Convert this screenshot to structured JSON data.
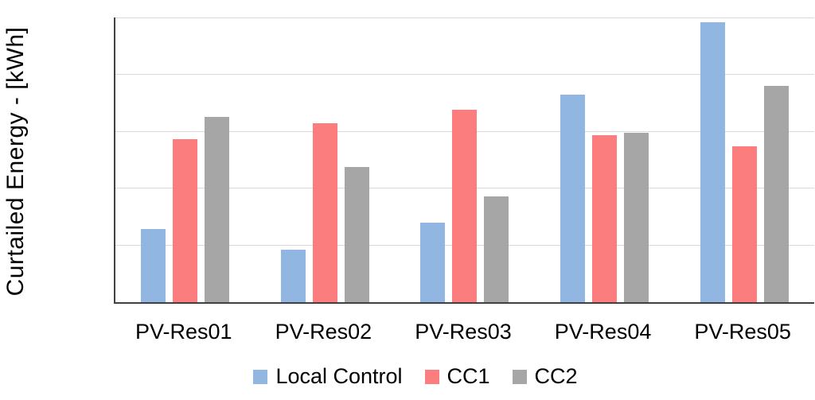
{
  "chart_data": {
    "type": "bar",
    "title": "",
    "ylabel": "Curtailed Energy - [kWh]",
    "xlabel": "",
    "ylim": [
      0,
      250
    ],
    "yticks": [
      0,
      50,
      100,
      150,
      200,
      250
    ],
    "grid": true,
    "legend_position": "bottom",
    "categories": [
      "PV-Res01",
      "PV-Res02",
      "PV-Res03",
      "PV-Res04",
      "PV-Res05"
    ],
    "series": [
      {
        "name": "Local Control",
        "color": "#92B6E2",
        "values": [
          64,
          46,
          70,
          182,
          246
        ]
      },
      {
        "name": "CC1",
        "color": "#FC7D7D",
        "values": [
          143,
          157,
          169,
          147,
          137
        ]
      },
      {
        "name": "CC2",
        "color": "#A6A6A6",
        "values": [
          163,
          119,
          93,
          149,
          190
        ]
      }
    ],
    "colors": {
      "gridline": "#d9d9d9",
      "axis": "#404040",
      "text": "#000000"
    }
  }
}
